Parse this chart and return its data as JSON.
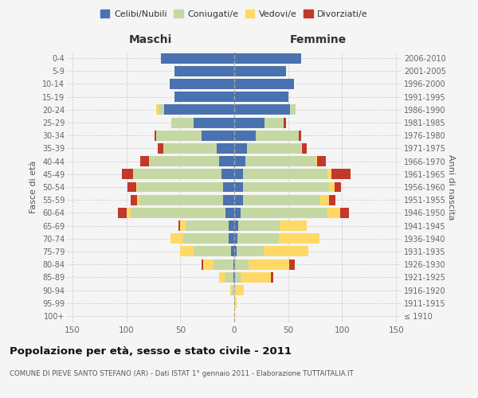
{
  "age_groups": [
    "100+",
    "95-99",
    "90-94",
    "85-89",
    "80-84",
    "75-79",
    "70-74",
    "65-69",
    "60-64",
    "55-59",
    "50-54",
    "45-49",
    "40-44",
    "35-39",
    "30-34",
    "25-29",
    "20-24",
    "15-19",
    "10-14",
    "5-9",
    "0-4"
  ],
  "birth_years": [
    "≤ 1910",
    "1911-1915",
    "1916-1920",
    "1921-1925",
    "1926-1930",
    "1931-1935",
    "1936-1940",
    "1941-1945",
    "1946-1950",
    "1951-1955",
    "1956-1960",
    "1961-1965",
    "1966-1970",
    "1971-1975",
    "1976-1980",
    "1981-1985",
    "1986-1990",
    "1991-1995",
    "1996-2000",
    "2001-2005",
    "2006-2010"
  ],
  "maschi": {
    "celibi": [
      0,
      0,
      0,
      1,
      1,
      3,
      5,
      5,
      8,
      10,
      10,
      12,
      14,
      16,
      30,
      38,
      65,
      55,
      60,
      55,
      68
    ],
    "coniugati": [
      0,
      0,
      2,
      8,
      18,
      35,
      42,
      40,
      88,
      78,
      80,
      82,
      65,
      50,
      42,
      20,
      5,
      0,
      0,
      0,
      0
    ],
    "vedovi": [
      0,
      0,
      2,
      5,
      10,
      12,
      12,
      5,
      4,
      2,
      1,
      0,
      0,
      0,
      0,
      0,
      2,
      0,
      0,
      0,
      0
    ],
    "divorziati": [
      0,
      0,
      0,
      0,
      1,
      0,
      0,
      2,
      8,
      6,
      8,
      10,
      8,
      5,
      2,
      0,
      0,
      0,
      0,
      0,
      0
    ]
  },
  "femmine": {
    "nubili": [
      0,
      0,
      0,
      1,
      1,
      2,
      3,
      4,
      6,
      8,
      8,
      8,
      10,
      12,
      20,
      28,
      52,
      50,
      55,
      48,
      62
    ],
    "coniugate": [
      0,
      0,
      1,
      5,
      12,
      25,
      38,
      38,
      80,
      72,
      80,
      78,
      65,
      50,
      40,
      18,
      5,
      0,
      0,
      0,
      0
    ],
    "vedove": [
      1,
      2,
      8,
      28,
      38,
      42,
      38,
      25,
      12,
      8,
      5,
      4,
      2,
      1,
      0,
      0,
      0,
      0,
      0,
      0,
      0
    ],
    "divorziate": [
      0,
      0,
      0,
      2,
      5,
      0,
      0,
      0,
      8,
      6,
      6,
      18,
      8,
      4,
      2,
      2,
      0,
      0,
      0,
      0,
      0
    ]
  },
  "colors": {
    "celibi": "#4a72b0",
    "coniugati": "#c5d8a4",
    "vedovi": "#ffd966",
    "divorziati": "#c0392b"
  },
  "xlim": 155,
  "title": "Popolazione per età, sesso e stato civile - 2011",
  "subtitle": "COMUNE DI PIEVE SANTO STEFANO (AR) - Dati ISTAT 1° gennaio 2011 - Elaborazione TUTTAITALIA.IT",
  "ylabel_left": "Fasce di età",
  "ylabel_right": "Anni di nascita",
  "xlabel_maschi": "Maschi",
  "xlabel_femmine": "Femmine",
  "bg_color": "#f5f5f5",
  "grid_color": "#cccccc"
}
